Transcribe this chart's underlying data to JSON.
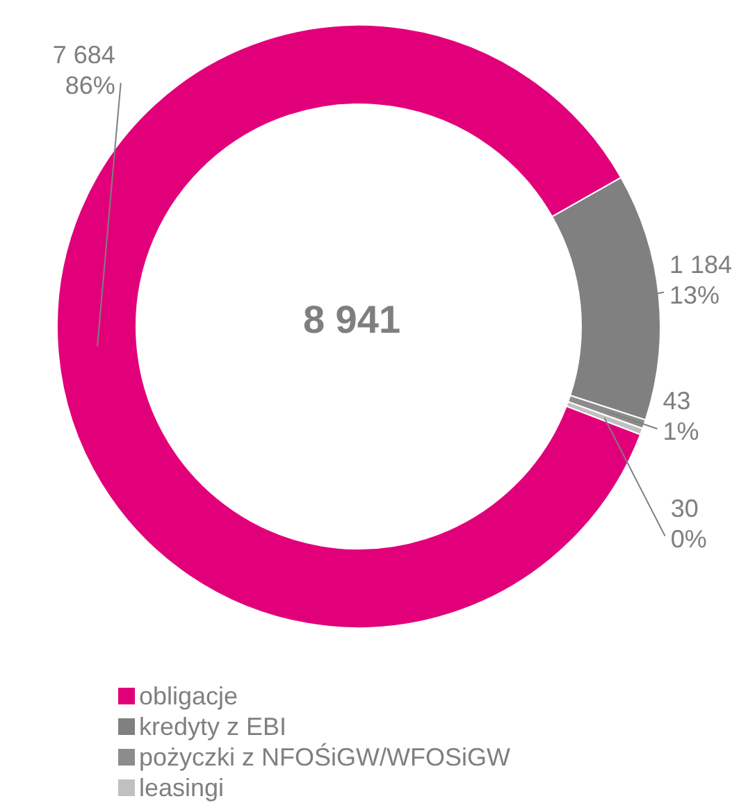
{
  "chart_data": {
    "type": "donut",
    "categories": [
      "obligacje",
      "kredyty z EBI",
      "pożyczki z NFOŚiGW/WFOSiGW",
      "leasingi"
    ],
    "values": [
      7684,
      1184,
      43,
      30
    ],
    "colors": [
      "#e2007a",
      "#808080",
      "#8c8c8c",
      "#c0c0c0"
    ],
    "value_labels": [
      "7 684\n86%",
      "1 184\n13%",
      "43\n1%",
      "30\n0%"
    ],
    "annotations": [
      "8 941"
    ],
    "legend": "bottom left"
  }
}
